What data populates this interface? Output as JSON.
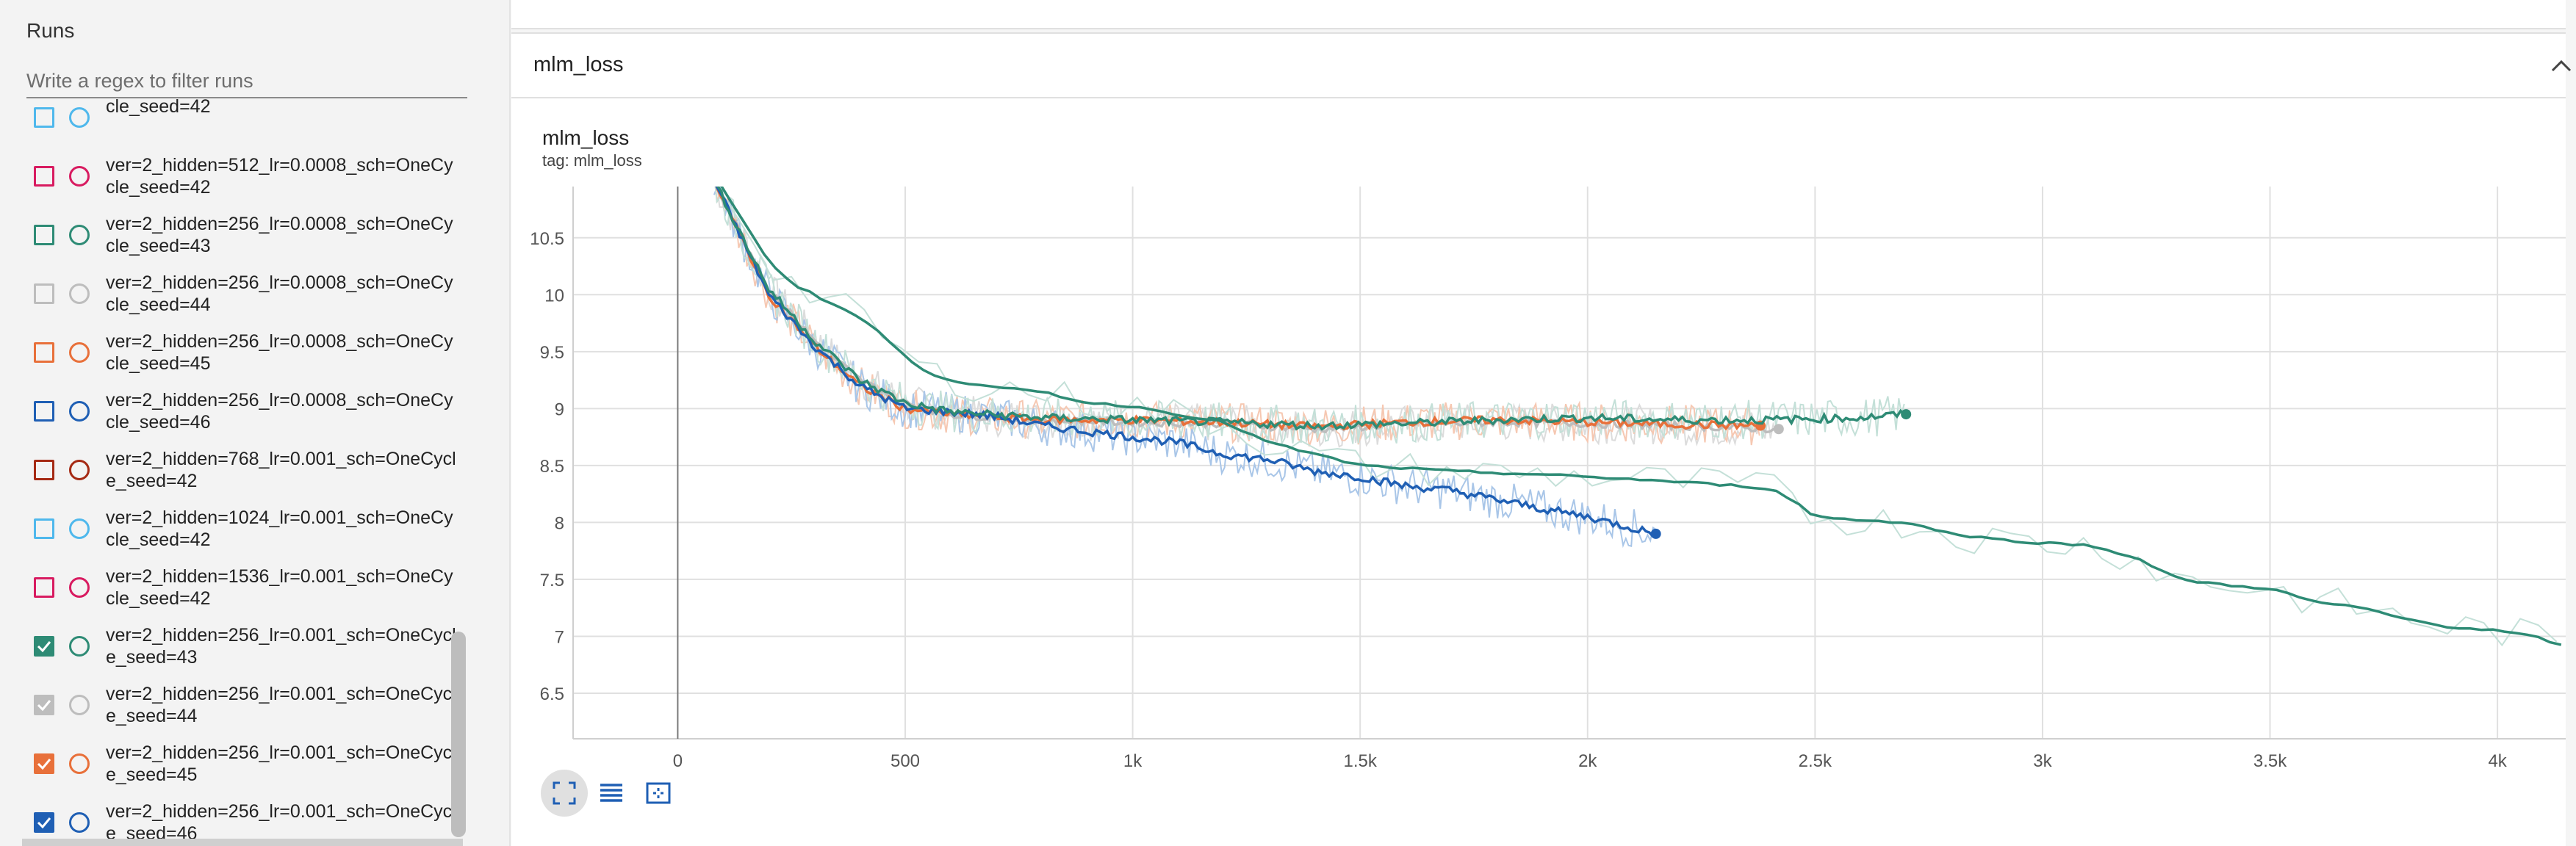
{
  "sidebar": {
    "title": "Runs",
    "filter_placeholder": "Write a regex to filter runs",
    "runs": [
      {
        "label": "cle_seed=42",
        "color": "#4fb8ec",
        "checked": false
      },
      {
        "label": "ver=2_hidden=512_lr=0.0008_sch=OneCycle_seed=42",
        "color": "#d81b60",
        "checked": false
      },
      {
        "label": "ver=2_hidden=256_lr=0.0008_sch=OneCycle_seed=43",
        "color": "#2e8b75",
        "checked": false
      },
      {
        "label": "ver=2_hidden=256_lr=0.0008_sch=OneCycle_seed=44",
        "color": "#bdbdbd",
        "checked": false
      },
      {
        "label": "ver=2_hidden=256_lr=0.0008_sch=OneCycle_seed=45",
        "color": "#e8703a",
        "checked": false
      },
      {
        "label": "ver=2_hidden=256_lr=0.0008_sch=OneCycle_seed=46",
        "color": "#1f5fb4",
        "checked": false
      },
      {
        "label": "ver=2_hidden=768_lr=0.001_sch=OneCycle_seed=42",
        "color": "#a52a14",
        "checked": false
      },
      {
        "label": "ver=2_hidden=1024_lr=0.001_sch=OneCycle_seed=42",
        "color": "#4fb8ec",
        "checked": false
      },
      {
        "label": "ver=2_hidden=1536_lr=0.001_sch=OneCycle_seed=42",
        "color": "#d81b60",
        "checked": false
      },
      {
        "label": "ver=2_hidden=256_lr=0.001_sch=OneCycle_seed=43",
        "color": "#2e8b75",
        "checked": true
      },
      {
        "label": "ver=2_hidden=256_lr=0.001_sch=OneCycle_seed=44",
        "color": "#bdbdbd",
        "checked": true
      },
      {
        "label": "ver=2_hidden=256_lr=0.001_sch=OneCycle_seed=45",
        "color": "#e8703a",
        "checked": true
      },
      {
        "label": "ver=2_hidden=256_lr=0.001_sch=OneCycle_seed=46",
        "color": "#1f5fb4",
        "checked": true
      }
    ]
  },
  "section": {
    "title": "mlm_loss"
  },
  "chart_card": {
    "title": "mlm_loss",
    "tag": "tag: mlm_loss"
  },
  "toolbar": [
    {
      "name": "fit-domain-button",
      "icon": "fit-domain-icon",
      "active": true
    },
    {
      "name": "toggle-log-scale-button",
      "icon": "list-lines-icon",
      "active": false
    },
    {
      "name": "toggle-y-axis-button",
      "icon": "dashed-frame-icon",
      "active": false
    }
  ],
  "chart_data": {
    "type": "line",
    "title": "mlm_loss",
    "xlabel": "",
    "ylabel": "",
    "xlim": [
      -230,
      4150
    ],
    "ylim": [
      6.1,
      10.95
    ],
    "xticks": [
      0,
      500,
      1000,
      1500,
      2000,
      2500,
      3000,
      3500,
      4000
    ],
    "xtick_labels": [
      "0",
      "500",
      "1k",
      "1.5k",
      "2k",
      "2.5k",
      "3k",
      "3.5k",
      "4k"
    ],
    "yticks": [
      6.5,
      7,
      7.5,
      8,
      8.5,
      9,
      9.5,
      10,
      10.5
    ],
    "ytick_labels": [
      "6.5",
      "7",
      "7.5",
      "8",
      "8.5",
      "9",
      "9.5",
      "10",
      "10.5"
    ],
    "grid": true,
    "series": [
      {
        "color": "#bdbdbd",
        "raw_color": "#dcdcdc",
        "points": [
          [
            80,
            11.0
          ],
          [
            200,
            10.05
          ],
          [
            300,
            9.6
          ],
          [
            400,
            9.25
          ],
          [
            500,
            9.05
          ],
          [
            600,
            8.95
          ],
          [
            800,
            8.9
          ],
          [
            1000,
            8.88
          ],
          [
            1200,
            8.87
          ],
          [
            1400,
            8.82
          ],
          [
            1600,
            8.86
          ],
          [
            1800,
            8.88
          ],
          [
            2000,
            8.87
          ],
          [
            2200,
            8.85
          ],
          [
            2420,
            8.82
          ]
        ]
      },
      {
        "color": "#e8703a",
        "raw_color": "#f6c8b2",
        "points": [
          [
            80,
            11.0
          ],
          [
            200,
            10.0
          ],
          [
            300,
            9.55
          ],
          [
            400,
            9.2
          ],
          [
            500,
            9.0
          ],
          [
            600,
            8.95
          ],
          [
            800,
            8.9
          ],
          [
            1000,
            8.9
          ],
          [
            1200,
            8.88
          ],
          [
            1400,
            8.84
          ],
          [
            1600,
            8.88
          ],
          [
            1800,
            8.9
          ],
          [
            2000,
            8.88
          ],
          [
            2200,
            8.86
          ],
          [
            2380,
            8.85
          ]
        ]
      },
      {
        "color": "#1f5fb4",
        "raw_color": "#a9c6e8",
        "points": [
          [
            80,
            11.0
          ],
          [
            200,
            10.0
          ],
          [
            300,
            9.55
          ],
          [
            400,
            9.2
          ],
          [
            500,
            9.0
          ],
          [
            600,
            8.97
          ],
          [
            700,
            8.93
          ],
          [
            800,
            8.85
          ],
          [
            900,
            8.8
          ],
          [
            1000,
            8.75
          ],
          [
            1100,
            8.7
          ],
          [
            1200,
            8.6
          ],
          [
            1300,
            8.55
          ],
          [
            1400,
            8.45
          ],
          [
            1500,
            8.4
          ],
          [
            1600,
            8.32
          ],
          [
            1700,
            8.28
          ],
          [
            1800,
            8.2
          ],
          [
            1900,
            8.12
          ],
          [
            2000,
            8.05
          ],
          [
            2100,
            7.95
          ],
          [
            2150,
            7.9
          ]
        ]
      },
      {
        "color": "#2e8b75",
        "raw_color": "#c4e0d8",
        "points": [
          [
            80,
            11.0
          ],
          [
            200,
            10.05
          ],
          [
            300,
            9.6
          ],
          [
            400,
            9.25
          ],
          [
            500,
            9.05
          ],
          [
            600,
            8.97
          ],
          [
            800,
            8.92
          ],
          [
            1000,
            8.9
          ],
          [
            1200,
            8.88
          ],
          [
            1400,
            8.85
          ],
          [
            1600,
            8.87
          ],
          [
            1800,
            8.9
          ],
          [
            2000,
            8.92
          ],
          [
            2200,
            8.9
          ],
          [
            2400,
            8.9
          ],
          [
            2600,
            8.92
          ],
          [
            2700,
            8.95
          ]
        ]
      },
      {
        "color": "#2e8b75",
        "raw_color": "#c4e0d8",
        "points": [
          [
            90,
            11.0
          ],
          [
            150,
            10.6
          ],
          [
            200,
            10.3
          ],
          [
            250,
            10.1
          ],
          [
            300,
            10.0
          ],
          [
            350,
            9.9
          ],
          [
            400,
            9.8
          ],
          [
            450,
            9.65
          ],
          [
            500,
            9.45
          ],
          [
            550,
            9.32
          ],
          [
            600,
            9.25
          ],
          [
            700,
            9.18
          ],
          [
            800,
            9.15
          ],
          [
            900,
            9.05
          ],
          [
            1000,
            9.02
          ],
          [
            1100,
            8.95
          ],
          [
            1200,
            8.88
          ],
          [
            1300,
            8.7
          ],
          [
            1400,
            8.6
          ],
          [
            1500,
            8.5
          ],
          [
            1700,
            8.45
          ],
          [
            1900,
            8.42
          ],
          [
            2100,
            8.38
          ],
          [
            2300,
            8.33
          ],
          [
            2400,
            8.3
          ],
          [
            2450,
            8.2
          ],
          [
            2500,
            8.05
          ],
          [
            2600,
            8.02
          ],
          [
            2700,
            8.0
          ],
          [
            2800,
            7.9
          ],
          [
            2900,
            7.85
          ],
          [
            3000,
            7.82
          ],
          [
            3100,
            7.8
          ],
          [
            3200,
            7.7
          ],
          [
            3300,
            7.5
          ],
          [
            3400,
            7.45
          ],
          [
            3500,
            7.42
          ],
          [
            3600,
            7.3
          ],
          [
            3700,
            7.25
          ],
          [
            3800,
            7.15
          ],
          [
            3900,
            7.08
          ],
          [
            4000,
            7.05
          ],
          [
            4100,
            6.98
          ],
          [
            4150,
            6.9
          ]
        ]
      }
    ]
  }
}
